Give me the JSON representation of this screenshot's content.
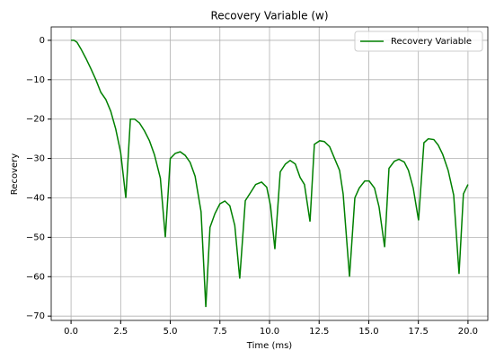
{
  "chart_data": {
    "type": "line",
    "title": "Recovery Variable (w)",
    "xlabel": "Time (ms)",
    "ylabel": "Recovery",
    "x": [
      0,
      0.15,
      0.3,
      0.5,
      0.75,
      1.0,
      1.25,
      1.5,
      1.75,
      2.0,
      2.25,
      2.5,
      2.76,
      2.99,
      3.2,
      3.45,
      3.7,
      3.95,
      4.2,
      4.5,
      4.75,
      5.0,
      5.25,
      5.5,
      5.75,
      6.0,
      6.25,
      6.55,
      6.79,
      7.0,
      7.25,
      7.5,
      7.75,
      8.0,
      8.25,
      8.5,
      8.78,
      9.05,
      9.3,
      9.6,
      9.86,
      10.05,
      10.27,
      10.54,
      10.8,
      11.04,
      11.3,
      11.54,
      11.76,
      12.04,
      12.26,
      12.53,
      12.76,
      13.03,
      13.26,
      13.53,
      13.71,
      14.03,
      14.3,
      14.52,
      14.8,
      15.02,
      15.29,
      15.52,
      15.8,
      16.02,
      16.29,
      16.52,
      16.79,
      17.0,
      17.24,
      17.51,
      17.78,
      18.0,
      18.28,
      18.5,
      18.73,
      19.0,
      19.28,
      19.55,
      19.77,
      20.0
    ],
    "series": [
      {
        "name": "Recovery Variable",
        "color": "#008000",
        "values": [
          0,
          0,
          -0.5,
          -2.2,
          -4.6,
          -7.2,
          -10,
          -13.2,
          -15,
          -18,
          -22.5,
          -28.5,
          -40,
          -20,
          -20,
          -21,
          -23,
          -25.5,
          -29,
          -35,
          -50,
          -30,
          -28.7,
          -28.3,
          -29.2,
          -31,
          -34.5,
          -43.5,
          -67.7,
          -47.5,
          -44,
          -41.5,
          -40.8,
          -42,
          -47,
          -60.5,
          -40.7,
          -38.6,
          -36.6,
          -36,
          -37.3,
          -42,
          -53,
          -33.4,
          -31.4,
          -30.5,
          -31.4,
          -34.8,
          -36.6,
          -46,
          -26.4,
          -25.5,
          -25.7,
          -27,
          -29.8,
          -33,
          -39,
          -60,
          -40,
          -37.5,
          -35.7,
          -35.7,
          -37.5,
          -42.3,
          -52.5,
          -32.5,
          -30.7,
          -30.2,
          -30.9,
          -33,
          -37.5,
          -45.7,
          -26,
          -25,
          -25.2,
          -26.6,
          -29,
          -33,
          -39.3,
          -59.3,
          -39,
          -36.6
        ]
      }
    ],
    "xlim": [
      -1,
      21
    ],
    "ylim": [
      -71.1,
      3.4
    ],
    "xticks": [
      {
        "value": 0,
        "label": "0.0"
      },
      2.5,
      {
        "value": 5,
        "label": "5.0"
      },
      7.5,
      {
        "value": 10,
        "label": "10.0"
      },
      12.5,
      {
        "value": 15,
        "label": "15.0"
      },
      17.5,
      {
        "value": 20,
        "label": "20.0"
      }
    ],
    "yticks": [
      {
        "value": -70,
        "label": "−70"
      },
      {
        "value": -60,
        "label": "−60"
      },
      {
        "value": -50,
        "label": "−50"
      },
      {
        "value": -40,
        "label": "−40"
      },
      {
        "value": -30,
        "label": "−30"
      },
      {
        "value": -20,
        "label": "−20"
      },
      {
        "value": -10,
        "label": "−10"
      },
      0
    ],
    "grid": true,
    "legend": "upper right"
  }
}
